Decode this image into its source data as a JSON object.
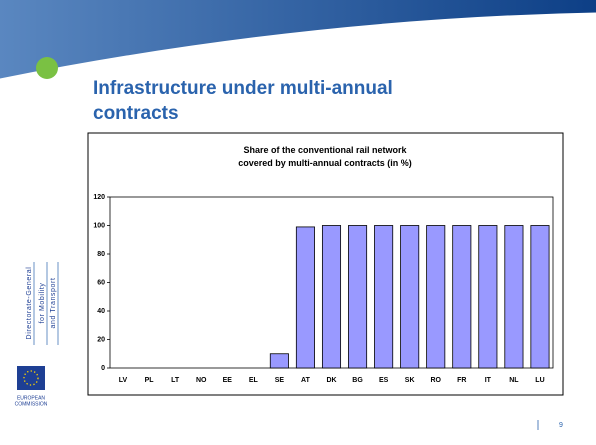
{
  "slide": {
    "title": "Infrastructure under multi-annual contracts",
    "side_text": [
      "Directorate-General",
      "for Mobility",
      "and Transport"
    ],
    "logo_text": [
      "EUROPEAN",
      "COMMISSION"
    ],
    "page_number": "9"
  },
  "chart_data": {
    "type": "bar",
    "title": "Share of the conventional rail network covered by multi-annual contracts (in %)",
    "categories": [
      "LV",
      "PL",
      "LT",
      "NO",
      "EE",
      "EL",
      "SE",
      "AT",
      "DK",
      "BG",
      "ES",
      "SK",
      "RO",
      "FR",
      "IT",
      "NL",
      "LU"
    ],
    "values": [
      0,
      0,
      0,
      0,
      0,
      0,
      10,
      99,
      100,
      100,
      100,
      100,
      100,
      100,
      100,
      100,
      100
    ],
    "color": "#9999ff",
    "ylim": [
      0,
      120
    ],
    "yticks": [
      0,
      20,
      40,
      60,
      80,
      100,
      120
    ],
    "grid": false
  }
}
